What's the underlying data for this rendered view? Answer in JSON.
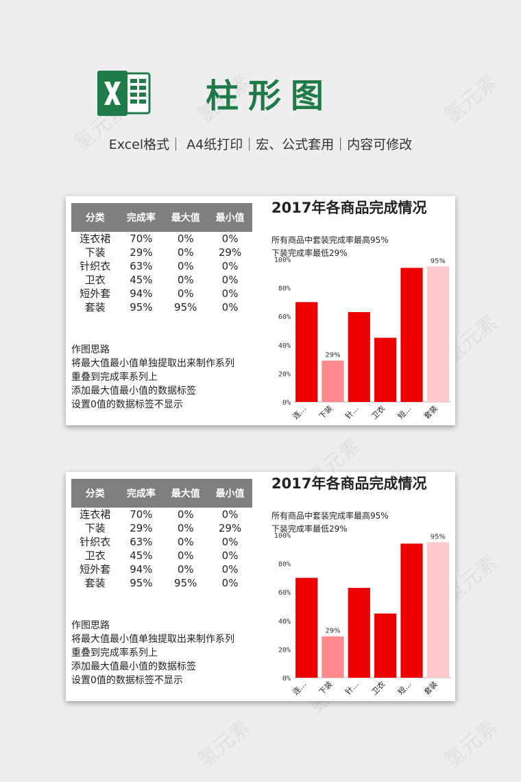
{
  "header": {
    "title": "柱形图",
    "subtitle": "Excel格式｜ A4纸打印｜宏、公式套用｜内容可修改"
  },
  "sheets": [
    {
      "table": {
        "headers": [
          "分类",
          "完成率",
          "最大值",
          "最小值"
        ],
        "rows": [
          [
            "连衣裙",
            "70%",
            "0%",
            "0%"
          ],
          [
            "下装",
            "29%",
            "0%",
            "29%"
          ],
          [
            "针织衣",
            "63%",
            "0%",
            "0%"
          ],
          [
            "卫衣",
            "45%",
            "0%",
            "0%"
          ],
          [
            "短外套",
            "94%",
            "0%",
            "0%"
          ],
          [
            "套装",
            "95%",
            "95%",
            "0%"
          ]
        ]
      },
      "notes": [
        "作图思路",
        "将最大值最小值单独提取出来制作系列",
        "重叠到完成率系列上",
        "添加最大值最小值的数据标签",
        "设置0值的数据标签不显示"
      ],
      "chart_title": "2017年各商品完成情况",
      "chart_subtitle": [
        "所有商品中套装完成率最高95%",
        "下装完成率最低29%"
      ]
    },
    {
      "table": {
        "headers": [
          "分类",
          "完成率",
          "最大值",
          "最小值"
        ],
        "rows": [
          [
            "连衣裙",
            "70%",
            "0%",
            "0%"
          ],
          [
            "下装",
            "29%",
            "0%",
            "29%"
          ],
          [
            "针织衣",
            "63%",
            "0%",
            "0%"
          ],
          [
            "卫衣",
            "45%",
            "0%",
            "0%"
          ],
          [
            "短外套",
            "94%",
            "0%",
            "0%"
          ],
          [
            "套装",
            "95%",
            "95%",
            "0%"
          ]
        ]
      },
      "notes": [
        "作图思路",
        "将最大值最小值单独提取出来制作系列",
        "重叠到完成率系列上",
        "添加最大值最小值的数据标签",
        "设置0值的数据标签不显示"
      ],
      "chart_title": "2017年各商品完成情况",
      "chart_subtitle": [
        "所有商品中套装完成率最高95%",
        "下装完成率最低29%"
      ]
    }
  ],
  "chart_data": [
    {
      "type": "bar",
      "title": "2017年各商品完成情况",
      "categories": [
        "连衣裙",
        "下装",
        "针织衣",
        "卫衣",
        "短外套",
        "套装"
      ],
      "tick_labels": [
        "连…",
        "下装",
        "针…",
        "卫衣",
        "短…",
        "套装"
      ],
      "values": [
        70,
        29,
        63,
        45,
        94,
        95
      ],
      "data_labels": [
        "",
        "29%",
        "",
        "",
        "",
        "95%"
      ],
      "colors": [
        "#ee0000",
        "#ff8a8e",
        "#ee0000",
        "#ee0000",
        "#ee0000",
        "#ffc8ca"
      ],
      "ylim": [
        0,
        100
      ],
      "yticks": [
        "0%",
        "20%",
        "40%",
        "60%",
        "80%",
        "100%"
      ],
      "grid": false
    },
    {
      "type": "bar",
      "title": "2017年各商品完成情况",
      "categories": [
        "连衣裙",
        "下装",
        "针织衣",
        "卫衣",
        "短外套",
        "套装"
      ],
      "tick_labels": [
        "连…",
        "下装",
        "针…",
        "卫衣",
        "短…",
        "套装"
      ],
      "values": [
        70,
        29,
        63,
        45,
        94,
        95
      ],
      "data_labels": [
        "",
        "29%",
        "",
        "",
        "",
        "95%"
      ],
      "colors": [
        "#ee0000",
        "#ff8a8e",
        "#ee0000",
        "#ee0000",
        "#ee0000",
        "#ffc8ca"
      ],
      "ylim": [
        0,
        100
      ],
      "yticks": [
        "0%",
        "20%",
        "40%",
        "60%",
        "80%",
        "100%"
      ],
      "grid": false
    }
  ],
  "watermark": "氢元素",
  "colors": {
    "excel_green": "#1e7a46",
    "table_header": "#7f7f7f",
    "bar_red": "#ee0000"
  }
}
